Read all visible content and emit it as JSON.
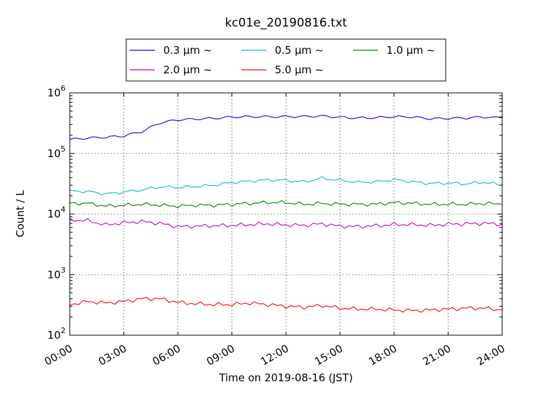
{
  "chart_data": {
    "type": "line",
    "title": "kc01e_20190816.txt",
    "xlabel": "Time on 2019-08-16 (JST)",
    "ylabel": "Count / L",
    "yscale": "log",
    "xlim": [
      "00:00",
      "24:00"
    ],
    "ylim": [
      100,
      1000000
    ],
    "x_ticks": [
      "00:00",
      "03:00",
      "06:00",
      "09:00",
      "12:00",
      "15:00",
      "18:00",
      "21:00",
      "24:00"
    ],
    "y_ticks": [
      {
        "base": "10",
        "exp": "2"
      },
      {
        "base": "10",
        "exp": "3"
      },
      {
        "base": "10",
        "exp": "4"
      },
      {
        "base": "10",
        "exp": "5"
      },
      {
        "base": "10",
        "exp": "6"
      }
    ],
    "grid": true,
    "legend_position": "top-center",
    "x": [
      "00:00",
      "01:00",
      "02:00",
      "03:00",
      "04:00",
      "05:00",
      "06:00",
      "07:00",
      "08:00",
      "09:00",
      "10:00",
      "11:00",
      "12:00",
      "13:00",
      "14:00",
      "15:00",
      "16:00",
      "17:00",
      "18:00",
      "19:00",
      "20:00",
      "21:00",
      "22:00",
      "23:00",
      "24:00"
    ],
    "series": [
      {
        "name": "0.3 μm ~",
        "color": "#0000ff",
        "values": [
          170000,
          180000,
          185000,
          195000,
          230000,
          320000,
          360000,
          370000,
          380000,
          400000,
          405000,
          405000,
          405000,
          408000,
          415000,
          395000,
          385000,
          390000,
          405000,
          400000,
          375000,
          380000,
          385000,
          400000,
          385000
        ]
      },
      {
        "name": "0.5 μm ~",
        "color": "#00bfbf",
        "values": [
          24000,
          23500,
          21500,
          23000,
          25000,
          28000,
          27500,
          28500,
          30000,
          33000,
          35000,
          36500,
          36000,
          34000,
          39000,
          36000,
          33500,
          34000,
          37000,
          34000,
          32000,
          32500,
          31500,
          33500,
          30000
        ]
      },
      {
        "name": "1.0 μm ~",
        "color": "#008000",
        "values": [
          15000,
          15000,
          13500,
          14000,
          14500,
          14000,
          13500,
          14000,
          14000,
          14500,
          15000,
          15500,
          15500,
          14500,
          15000,
          14500,
          14500,
          14500,
          15500,
          15000,
          14500,
          14500,
          14500,
          15000,
          14500
        ]
      },
      {
        "name": "2.0 μm ~",
        "color": "#bf00bf",
        "values": [
          8000,
          7800,
          6600,
          7200,
          7500,
          7000,
          6200,
          6300,
          6400,
          6500,
          6700,
          6900,
          6600,
          6500,
          6900,
          6300,
          6200,
          6400,
          6700,
          6700,
          6500,
          6800,
          6900,
          7000,
          6800
        ]
      },
      {
        "name": "5.0 μm ~",
        "color": "#ff0000",
        "values": [
          320,
          360,
          340,
          360,
          400,
          400,
          350,
          330,
          320,
          320,
          340,
          320,
          300,
          290,
          310,
          280,
          270,
          270,
          260,
          255,
          260,
          270,
          280,
          280,
          260
        ]
      }
    ]
  }
}
